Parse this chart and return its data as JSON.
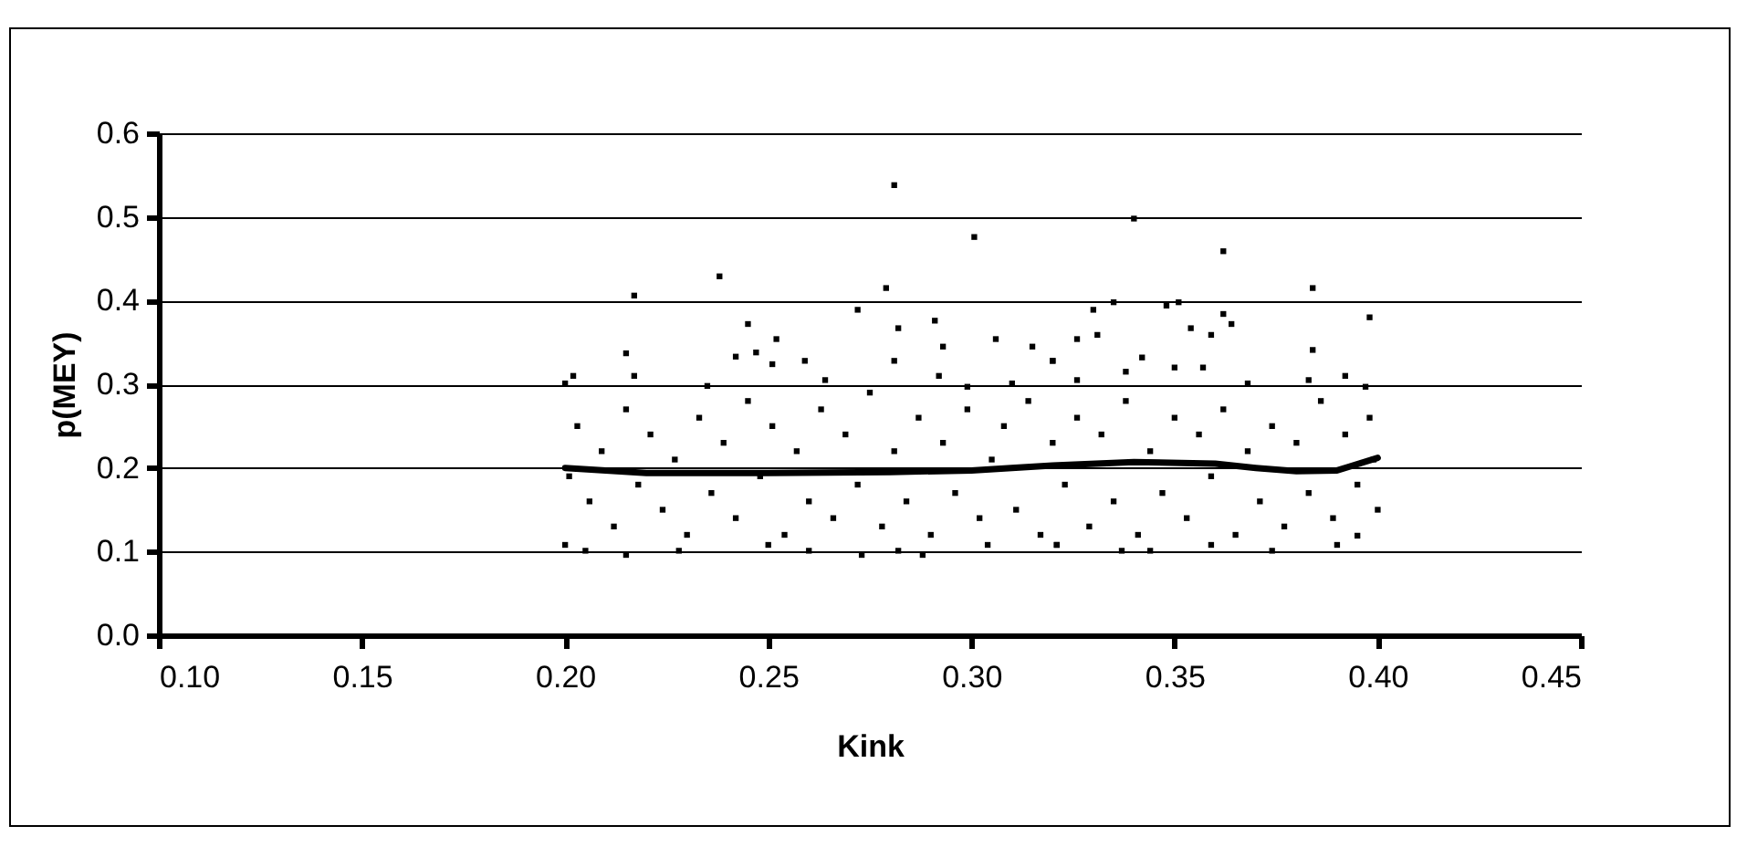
{
  "chart_data": {
    "type": "scatter",
    "xlabel": "Kink",
    "ylabel": "p(MEY)",
    "xlim": [
      0.1,
      0.45
    ],
    "ylim": [
      0,
      0.6
    ],
    "xticks": [
      {
        "value": 0.1,
        "label": "0.10"
      },
      {
        "value": 0.15,
        "label": "0.15"
      },
      {
        "value": 0.2,
        "label": "0.20"
      },
      {
        "value": 0.25,
        "label": "0.25"
      },
      {
        "value": 0.3,
        "label": "0.30"
      },
      {
        "value": 0.35,
        "label": "0.35"
      },
      {
        "value": 0.4,
        "label": "0.40"
      },
      {
        "value": 0.45,
        "label": "0.45"
      }
    ],
    "yticks": [
      {
        "value": 0,
        "label": "0.0"
      },
      0.1,
      0.2,
      0.3,
      0.4,
      0.5,
      0.6
    ],
    "grid": "y",
    "series": [
      {
        "marker": "square",
        "color": "#000000",
        "x": [
          0.281,
          0.3007,
          0.238,
          0.217,
          0.279,
          0.272,
          0.245,
          0.282,
          0.291,
          0.252,
          0.306,
          0.315,
          0.293,
          0.215,
          0.247,
          0.242,
          0.259,
          0.32,
          0.281,
          0.251,
          0.217,
          0.202,
          0.2,
          0.292,
          0.299,
          0.235,
          0.264,
          0.31,
          0.215,
          0.273,
          0.288,
          0.205,
          0.228,
          0.26,
          0.282,
          0.304,
          0.2,
          0.25,
          0.321,
          0.34,
          0.362,
          0.384,
          0.398,
          0.33,
          0.335,
          0.348,
          0.351,
          0.326,
          0.331,
          0.354,
          0.359,
          0.362,
          0.364,
          0.384,
          0.32,
          0.342,
          0.338,
          0.35,
          0.357,
          0.392,
          0.326,
          0.383,
          0.397,
          0.368,
          0.337,
          0.344,
          0.374,
          0.39,
          0.359,
          0.321,
          0.395,
          0.203,
          0.206,
          0.209,
          0.212,
          0.215,
          0.218,
          0.221,
          0.224,
          0.227,
          0.23,
          0.233,
          0.236,
          0.239,
          0.242,
          0.245,
          0.248,
          0.251,
          0.254,
          0.257,
          0.26,
          0.263,
          0.266,
          0.269,
          0.272,
          0.275,
          0.278,
          0.281,
          0.284,
          0.287,
          0.29,
          0.293,
          0.296,
          0.299,
          0.302,
          0.305,
          0.308,
          0.311,
          0.314,
          0.317,
          0.32,
          0.323,
          0.326,
          0.329,
          0.332,
          0.335,
          0.338,
          0.341,
          0.344,
          0.347,
          0.35,
          0.353,
          0.356,
          0.359,
          0.362,
          0.365,
          0.368,
          0.371,
          0.374,
          0.377,
          0.38,
          0.383,
          0.386,
          0.389,
          0.392,
          0.395,
          0.398,
          0.4,
          0.201,
          0.399
        ],
        "values": [
          0.538,
          0.476,
          0.429,
          0.406,
          0.415,
          0.389,
          0.372,
          0.367,
          0.376,
          0.354,
          0.354,
          0.345,
          0.345,
          0.337,
          0.338,
          0.333,
          0.328,
          0.328,
          0.328,
          0.324,
          0.31,
          0.31,
          0.301,
          0.31,
          0.297,
          0.298,
          0.305,
          0.301,
          0.096,
          0.096,
          0.096,
          0.101,
          0.101,
          0.101,
          0.101,
          0.108,
          0.108,
          0.108,
          0.108,
          0.498,
          0.459,
          0.415,
          0.38,
          0.389,
          0.398,
          0.394,
          0.398,
          0.354,
          0.359,
          0.367,
          0.359,
          0.384,
          0.372,
          0.341,
          0.328,
          0.332,
          0.315,
          0.32,
          0.32,
          0.31,
          0.305,
          0.305,
          0.297,
          0.301,
          0.101,
          0.101,
          0.101,
          0.108,
          0.108,
          0.108,
          0.119,
          0.25,
          0.16,
          0.22,
          0.13,
          0.27,
          0.18,
          0.24,
          0.15,
          0.21,
          0.12,
          0.26,
          0.17,
          0.23,
          0.14,
          0.28,
          0.19,
          0.25,
          0.12,
          0.22,
          0.16,
          0.27,
          0.14,
          0.24,
          0.18,
          0.29,
          0.13,
          0.22,
          0.16,
          0.26,
          0.12,
          0.23,
          0.17,
          0.27,
          0.14,
          0.21,
          0.25,
          0.15,
          0.28,
          0.12,
          0.23,
          0.18,
          0.26,
          0.13,
          0.24,
          0.16,
          0.28,
          0.12,
          0.22,
          0.17,
          0.26,
          0.14,
          0.24,
          0.19,
          0.27,
          0.12,
          0.22,
          0.16,
          0.25,
          0.13,
          0.23,
          0.17,
          0.28,
          0.14,
          0.24,
          0.18,
          0.26,
          0.15,
          0.19,
          0.21
        ]
      },
      {
        "type": "line",
        "marker": "none",
        "color": "#000000",
        "x": [
          0.2,
          0.22,
          0.25,
          0.28,
          0.3,
          0.32,
          0.34,
          0.36,
          0.37,
          0.38,
          0.39,
          0.4
        ],
        "values": [
          0.2,
          0.194,
          0.194,
          0.195,
          0.197,
          0.203,
          0.207,
          0.205,
          0.2,
          0.196,
          0.197,
          0.212
        ]
      }
    ]
  }
}
